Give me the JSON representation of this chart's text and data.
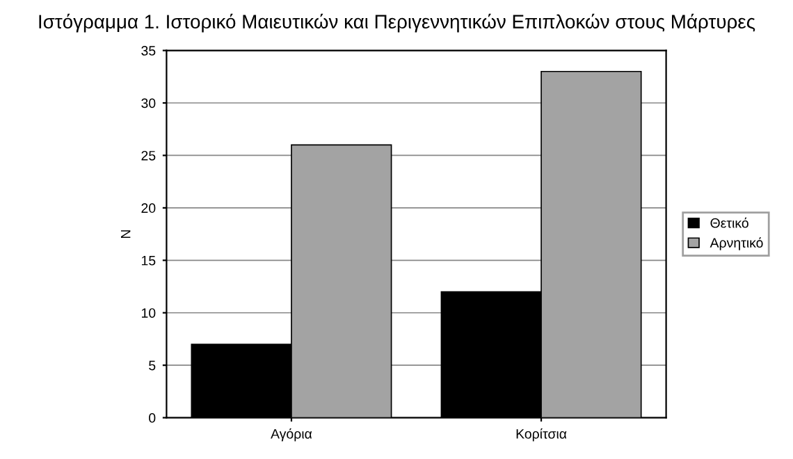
{
  "chart_data": {
    "type": "bar",
    "title": "Ιστόγραμμα 1. Ιστορικό Μαιευτικών και Περιγεννητικών Επιπλοκών στους Μάρτυρες",
    "ylabel": "N",
    "categories": [
      "Αγόρια",
      "Κορίτσια"
    ],
    "series": [
      {
        "name": "Θετικό",
        "color": "#000000",
        "values": [
          7,
          12
        ]
      },
      {
        "name": "Αρνητικό",
        "color": "#a3a3a3",
        "values": [
          26,
          33
        ]
      }
    ],
    "ylim": [
      0,
      35
    ],
    "yticks": [
      0,
      5,
      10,
      15,
      20,
      25,
      30,
      35
    ],
    "grid": "y",
    "legend": "right"
  }
}
